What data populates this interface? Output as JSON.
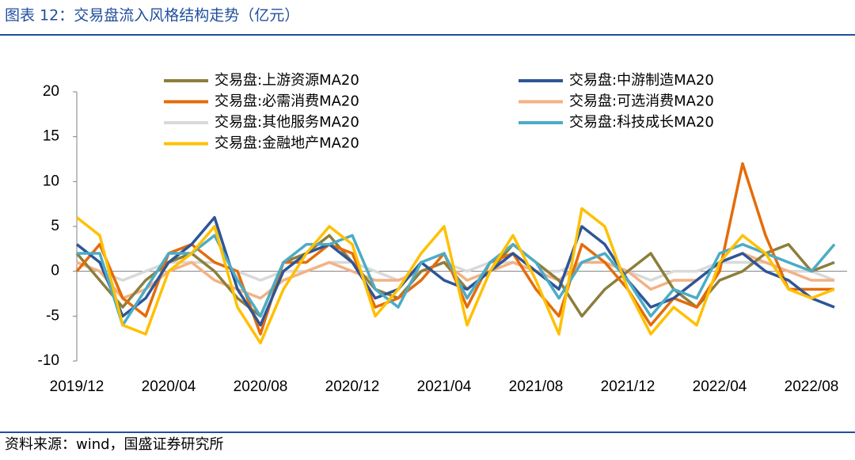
{
  "chart_data": {
    "type": "line",
    "title": "图表 12：交易盘流入风格结构走势（亿元）",
    "source": "资料来源：wind，国盛证券研究所",
    "categories": [
      "2019/12",
      null,
      null,
      null,
      "2020/04",
      null,
      null,
      null,
      "2020/08",
      null,
      null,
      null,
      "2020/12",
      null,
      null,
      null,
      "2021/04",
      null,
      null,
      null,
      "2021/08",
      null,
      null,
      null,
      "2021/12",
      null,
      null,
      null,
      "2022/04",
      null,
      null,
      null,
      "2022/08",
      null
    ],
    "ylim": [
      -10,
      20
    ],
    "yticks": [
      -10,
      -5,
      0,
      5,
      10,
      15,
      20
    ],
    "series": [
      {
        "name": "交易盘:上游资源MA20",
        "color": "#8c7e3c",
        "values": [
          2,
          -1,
          -4,
          -1,
          1,
          2,
          0,
          -3,
          -5,
          1,
          2,
          4,
          1,
          -2,
          -3,
          0,
          1,
          -2,
          0,
          3,
          1,
          -1,
          -5,
          -2,
          0,
          2,
          -2,
          -4,
          -1,
          0,
          2,
          3,
          0,
          1
        ]
      },
      {
        "name": "交易盘:中游制造MA20",
        "color": "#2e5597",
        "values": [
          3,
          1,
          -5,
          -3,
          1,
          3,
          6,
          -2,
          -6,
          0,
          2,
          3,
          1,
          -3,
          -2,
          1,
          -1,
          -2,
          0,
          2,
          0,
          -2,
          5,
          3,
          -1,
          -4,
          -3,
          -1,
          1,
          2,
          0,
          -1,
          -3,
          -4
        ]
      },
      {
        "name": "交易盘:必需消费MA20",
        "color": "#e46c0a",
        "values": [
          0,
          3,
          -3,
          -5,
          2,
          3,
          1,
          0,
          -7,
          1,
          1,
          3,
          2,
          -4,
          -3,
          -1,
          2,
          -4,
          1,
          2,
          -2,
          -5,
          3,
          1,
          -2,
          -6,
          -3,
          -4,
          0,
          12,
          4,
          -2,
          -2,
          -2
        ]
      },
      {
        "name": "交易盘:可选消费MA20",
        "color": "#f4b183",
        "values": [
          1,
          0,
          -3,
          -2,
          0,
          1,
          -1,
          -2,
          -3,
          -1,
          0,
          1,
          0,
          -1,
          -1,
          0,
          1,
          -1,
          0,
          1,
          0,
          -1,
          1,
          1,
          0,
          -2,
          -1,
          -1,
          1,
          2,
          1,
          0,
          -1,
          -1
        ]
      },
      {
        "name": "交易盘:其他服务MA20",
        "color": "#d9d9d9",
        "values": [
          1,
          0,
          -1,
          0,
          1,
          1,
          1,
          0,
          -1,
          0,
          0,
          1,
          1,
          0,
          -1,
          0,
          1,
          0,
          1,
          1,
          0,
          0,
          1,
          1,
          0,
          -1,
          0,
          0,
          1,
          1,
          1,
          0,
          0,
          -1
        ]
      },
      {
        "name": "交易盘:科技成长MA20",
        "color": "#4bacc6",
        "values": [
          2,
          2,
          -6,
          -2,
          2,
          2,
          4,
          -1,
          -5,
          1,
          3,
          3,
          4,
          -2,
          -4,
          1,
          2,
          -3,
          1,
          3,
          1,
          -3,
          1,
          2,
          -1,
          -5,
          -2,
          -3,
          2,
          3,
          2,
          1,
          0,
          3
        ]
      },
      {
        "name": "交易盘:金融地产MA20",
        "color": "#ffc000",
        "values": [
          6,
          4,
          -6,
          -7,
          0,
          2,
          5,
          -4,
          -8,
          -2,
          2,
          5,
          3,
          -5,
          -2,
          2,
          5,
          -6,
          0,
          4,
          -1,
          -7,
          7,
          5,
          -2,
          -7,
          -4,
          -6,
          1,
          4,
          2,
          -2,
          -3,
          -2
        ]
      }
    ]
  }
}
